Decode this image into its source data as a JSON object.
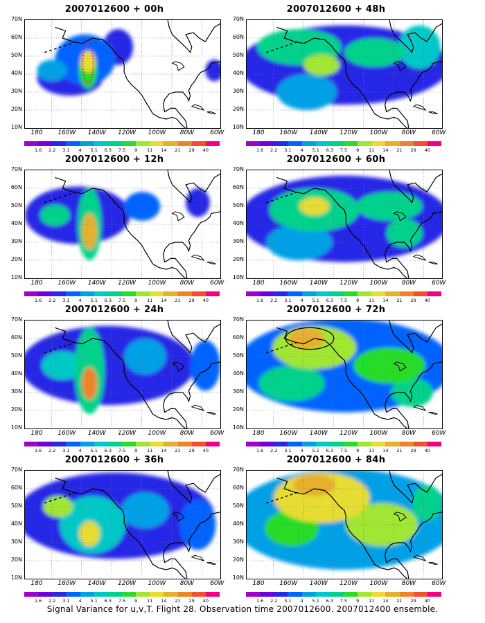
{
  "figure": {
    "caption": "Signal Variance for u,v,T. Flight 28. Observation time 2007012600. 2007012400 ensemble."
  },
  "map": {
    "y_labels": [
      "70N",
      "60N",
      "50N",
      "40N",
      "30N",
      "20N",
      "10N"
    ],
    "x_labels": [
      "180",
      "160W",
      "140W",
      "120W",
      "100W",
      "80W",
      "60W"
    ],
    "extent": {
      "lon": [
        170,
        300
      ],
      "lat": [
        10,
        70
      ]
    },
    "grid": "dotted",
    "coastlines": true
  },
  "colorbar": {
    "labels": [
      "1.6",
      "2.2",
      "3.1",
      "4",
      "5.1",
      "6.3",
      "7.5",
      "9",
      "11",
      "14",
      "21",
      "29",
      "40"
    ],
    "colors": [
      "#a000c8",
      "#6e00dc",
      "#2828e6",
      "#0064ff",
      "#00a0e6",
      "#00c8c8",
      "#00d28c",
      "#28dc28",
      "#a0e632",
      "#e6dc32",
      "#e6af2d",
      "#f08228",
      "#f0502d",
      "#f00082"
    ]
  },
  "panels": [
    {
      "title": "2007012600 + 00h",
      "lead_hours": 0,
      "fields": [
        {
          "lon": 188,
          "lat": 42,
          "rx": 10,
          "ry": 6,
          "level": 4
        },
        {
          "lon": 210,
          "lat": 48,
          "rx": 20,
          "ry": 14,
          "level": 3
        },
        {
          "lon": 212,
          "lat": 42,
          "rx": 6,
          "ry": 10,
          "level": 7
        },
        {
          "lon": 212,
          "lat": 47,
          "rx": 5,
          "ry": 6,
          "level": 9
        },
        {
          "lon": 200,
          "lat": 38,
          "rx": 22,
          "ry": 10,
          "level": 2
        },
        {
          "lon": 232,
          "lat": 55,
          "rx": 10,
          "ry": 10,
          "level": 2
        },
        {
          "lon": 296,
          "lat": 42,
          "rx": 6,
          "ry": 6,
          "level": 2
        }
      ],
      "flight_track": true
    },
    {
      "title": "2007012600 + 48h",
      "lead_hours": 48,
      "fields": [
        {
          "lon": 235,
          "lat": 45,
          "rx": 70,
          "ry": 22,
          "level": 2
        },
        {
          "lon": 205,
          "lat": 55,
          "rx": 28,
          "ry": 10,
          "level": 6
        },
        {
          "lon": 255,
          "lat": 52,
          "rx": 20,
          "ry": 8,
          "level": 6
        },
        {
          "lon": 210,
          "lat": 30,
          "rx": 20,
          "ry": 10,
          "level": 4
        },
        {
          "lon": 285,
          "lat": 55,
          "rx": 14,
          "ry": 12,
          "level": 5
        },
        {
          "lon": 220,
          "lat": 45,
          "rx": 12,
          "ry": 6,
          "level": 8
        }
      ]
    },
    {
      "title": "2007012600 + 12h",
      "lead_hours": 12,
      "fields": [
        {
          "lon": 205,
          "lat": 45,
          "rx": 35,
          "ry": 16,
          "level": 2
        },
        {
          "lon": 213,
          "lat": 40,
          "rx": 8,
          "ry": 20,
          "level": 6
        },
        {
          "lon": 213,
          "lat": 36,
          "rx": 5,
          "ry": 10,
          "level": 10
        },
        {
          "lon": 190,
          "lat": 45,
          "rx": 10,
          "ry": 6,
          "level": 6
        },
        {
          "lon": 248,
          "lat": 50,
          "rx": 12,
          "ry": 8,
          "level": 3
        },
        {
          "lon": 285,
          "lat": 52,
          "rx": 8,
          "ry": 8,
          "level": 2
        }
      ]
    },
    {
      "title": "2007012600 + 60h",
      "lead_hours": 60,
      "fields": [
        {
          "lon": 235,
          "lat": 43,
          "rx": 70,
          "ry": 24,
          "level": 2
        },
        {
          "lon": 215,
          "lat": 48,
          "rx": 30,
          "ry": 12,
          "level": 6
        },
        {
          "lon": 265,
          "lat": 50,
          "rx": 22,
          "ry": 8,
          "level": 6
        },
        {
          "lon": 205,
          "lat": 30,
          "rx": 22,
          "ry": 10,
          "level": 4
        },
        {
          "lon": 215,
          "lat": 50,
          "rx": 10,
          "ry": 5,
          "level": 9
        },
        {
          "lon": 275,
          "lat": 35,
          "rx": 12,
          "ry": 8,
          "level": 6
        }
      ]
    },
    {
      "title": "2007012600 + 24h",
      "lead_hours": 24,
      "fields": [
        {
          "lon": 225,
          "lat": 45,
          "rx": 58,
          "ry": 22,
          "level": 2
        },
        {
          "lon": 213,
          "lat": 42,
          "rx": 10,
          "ry": 24,
          "level": 6
        },
        {
          "lon": 213,
          "lat": 35,
          "rx": 5,
          "ry": 9,
          "level": 11
        },
        {
          "lon": 195,
          "lat": 45,
          "rx": 14,
          "ry": 8,
          "level": 5
        },
        {
          "lon": 250,
          "lat": 50,
          "rx": 14,
          "ry": 10,
          "level": 4
        },
        {
          "lon": 290,
          "lat": 45,
          "rx": 10,
          "ry": 14,
          "level": 3
        }
      ]
    },
    {
      "title": "2007012600 + 72h",
      "lead_hours": 72,
      "fields": [
        {
          "lon": 235,
          "lat": 45,
          "rx": 72,
          "ry": 26,
          "level": 3
        },
        {
          "lon": 215,
          "lat": 55,
          "rx": 28,
          "ry": 12,
          "level": 8
        },
        {
          "lon": 210,
          "lat": 60,
          "rx": 12,
          "ry": 6,
          "level": 10
        },
        {
          "lon": 265,
          "lat": 45,
          "rx": 24,
          "ry": 10,
          "level": 7
        },
        {
          "lon": 200,
          "lat": 35,
          "rx": 22,
          "ry": 10,
          "level": 6
        },
        {
          "lon": 280,
          "lat": 30,
          "rx": 14,
          "ry": 8,
          "level": 6
        }
      ],
      "ellipse_marker": {
        "lon": 212,
        "lat": 60,
        "rx": 16,
        "ry": 6
      }
    },
    {
      "title": "2007012600 + 36h",
      "lead_hours": 36,
      "fields": [
        {
          "lon": 230,
          "lat": 45,
          "rx": 66,
          "ry": 24,
          "level": 2
        },
        {
          "lon": 215,
          "lat": 40,
          "rx": 22,
          "ry": 16,
          "level": 5
        },
        {
          "lon": 213,
          "lat": 35,
          "rx": 7,
          "ry": 7,
          "level": 9
        },
        {
          "lon": 192,
          "lat": 50,
          "rx": 10,
          "ry": 6,
          "level": 8
        },
        {
          "lon": 250,
          "lat": 48,
          "rx": 16,
          "ry": 10,
          "level": 4
        },
        {
          "lon": 285,
          "lat": 40,
          "rx": 12,
          "ry": 14,
          "level": 3
        }
      ]
    },
    {
      "title": "2007012600 + 84h",
      "lead_hours": 84,
      "fields": [
        {
          "lon": 235,
          "lat": 43,
          "rx": 75,
          "ry": 28,
          "level": 4
        },
        {
          "lon": 220,
          "lat": 55,
          "rx": 32,
          "ry": 14,
          "level": 9
        },
        {
          "lon": 215,
          "lat": 62,
          "rx": 14,
          "ry": 6,
          "level": 10
        },
        {
          "lon": 260,
          "lat": 40,
          "rx": 24,
          "ry": 12,
          "level": 8
        },
        {
          "lon": 200,
          "lat": 38,
          "rx": 18,
          "ry": 10,
          "level": 7
        },
        {
          "lon": 290,
          "lat": 52,
          "rx": 10,
          "ry": 10,
          "level": 6
        }
      ]
    }
  ]
}
